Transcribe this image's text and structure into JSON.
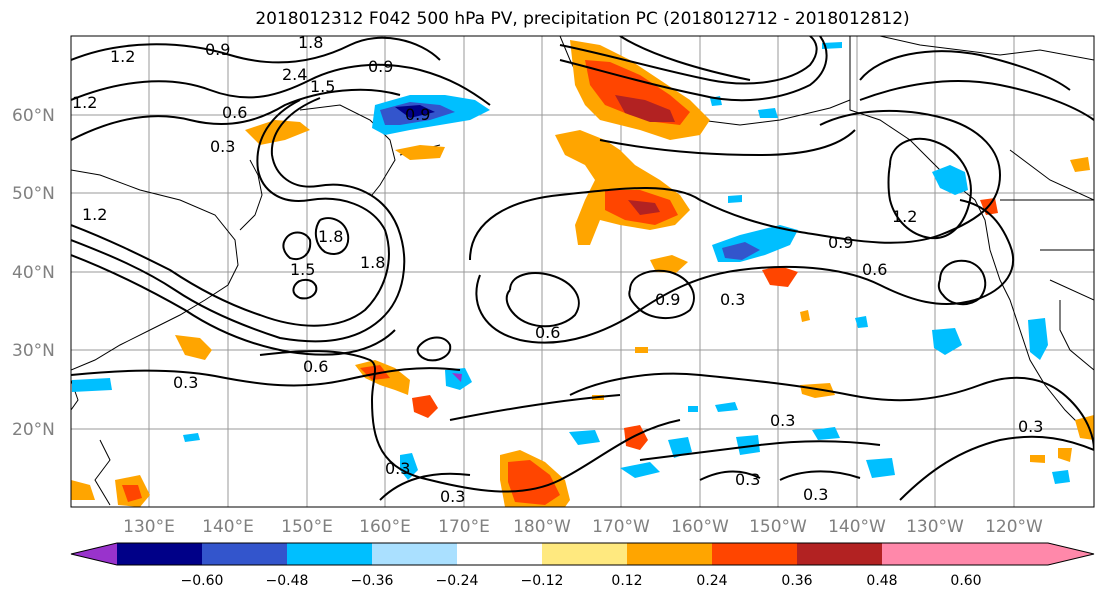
{
  "title": "2018012312 F042 500 hPa PV, precipitation PC (2018012712 - 2018012812)",
  "lat_labels": [
    "60°N",
    "50°N",
    "40°N",
    "30°N",
    "20°N"
  ],
  "lon_labels": [
    "130°E",
    "140°E",
    "150°E",
    "160°E",
    "170°E",
    "180°W",
    "170°W",
    "160°W",
    "150°W",
    "140°W",
    "130°W",
    "120°W"
  ],
  "colorbar": {
    "colors": [
      "#9933cc",
      "#000088",
      "#3355cc",
      "#00bfff",
      "#aae0ff",
      "#ffffff",
      "#ffe97f",
      "#ffa500",
      "#ff4500",
      "#b22222",
      "#ff88aa"
    ],
    "tick_labels": [
      "−0.60",
      "−0.48",
      "−0.36",
      "−0.24",
      "−0.12",
      "0.12",
      "0.24",
      "0.36",
      "0.48",
      "0.60"
    ]
  },
  "pv_contour_labels": [
    {
      "text": "1.2"
    },
    {
      "text": "0.9"
    },
    {
      "text": "1.8"
    },
    {
      "text": "2.4"
    },
    {
      "text": "1.5"
    },
    {
      "text": "1.2"
    },
    {
      "text": "0.6"
    },
    {
      "text": "0.3"
    },
    {
      "text": "0.9"
    },
    {
      "text": "1.8"
    },
    {
      "text": "1.5"
    },
    {
      "text": "1.8"
    },
    {
      "text": "1.2"
    },
    {
      "text": "0.9"
    },
    {
      "text": "0.6"
    },
    {
      "text": "0.3"
    },
    {
      "text": "0.9"
    },
    {
      "text": "0.6"
    },
    {
      "text": "0.6"
    },
    {
      "text": "0.3"
    },
    {
      "text": "0.3"
    },
    {
      "text": "0.3"
    },
    {
      "text": "0.3"
    },
    {
      "text": "0.3"
    },
    {
      "text": "0.3"
    },
    {
      "text": "0.9"
    },
    {
      "text": "1.2"
    },
    {
      "text": "0.3"
    }
  ]
}
